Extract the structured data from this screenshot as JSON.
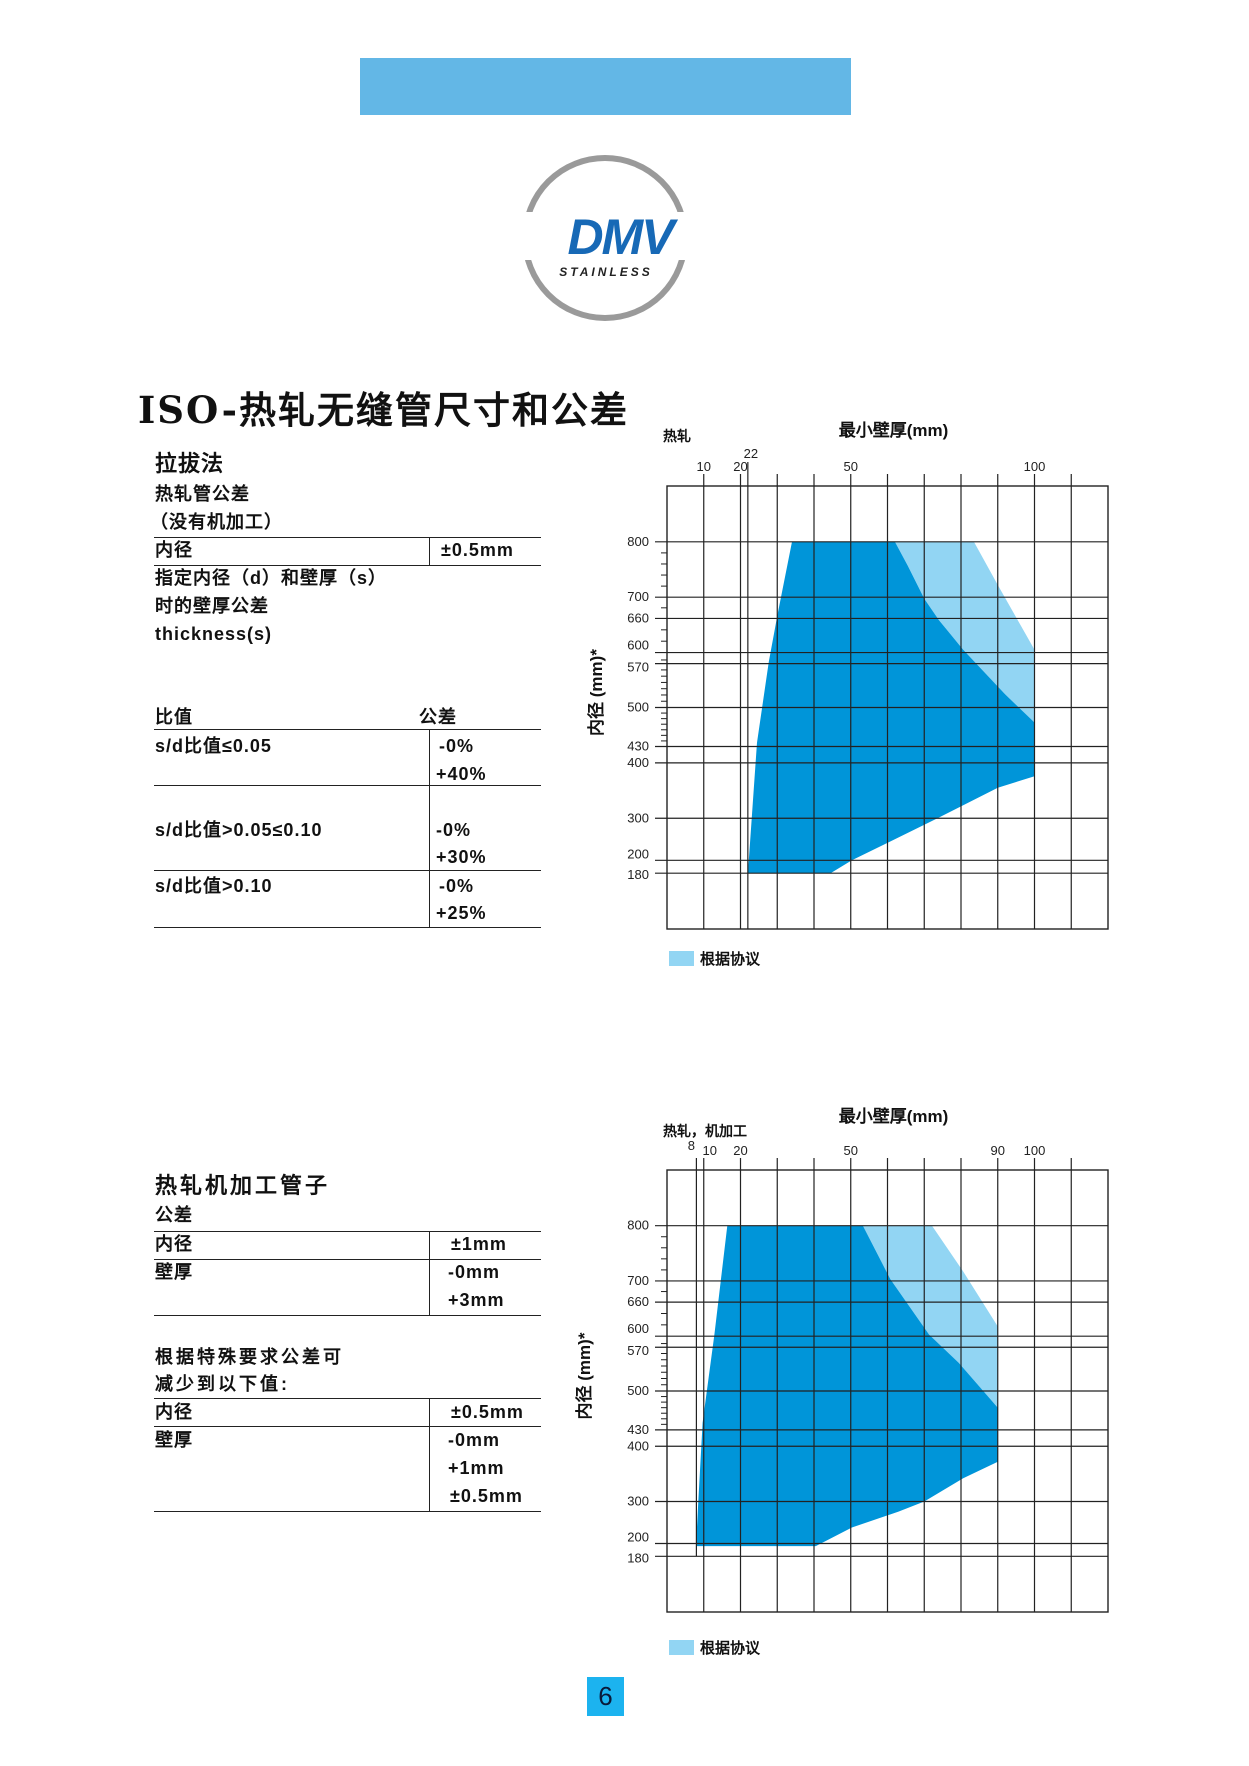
{
  "logo": {
    "brand": "DMV",
    "subtitle": "STAINLESS",
    "colors": {
      "ring": "#9a9a9a",
      "text": "#1769b6"
    }
  },
  "title": "ISO-热轧无缝管尺寸和公差",
  "section1": {
    "heading": "拉拔法",
    "sub1": "热轧管公差",
    "sub2": "（没有机加工）",
    "inner_diameter_label": "内径",
    "inner_diameter_value": "±0.5mm",
    "note1": "指定内径（d）和壁厚（s）",
    "note2": "时的壁厚公差",
    "note3": "thickness(s)",
    "table": {
      "col_ratio": "比值",
      "col_tol": "公差",
      "rows": [
        {
          "ratio": "s/d比值≤0.05",
          "minus": "-0%",
          "plus": "+40%"
        },
        {
          "ratio": "s/d比值>0.05≤0.10",
          "minus": "-0%",
          "plus": "+30%"
        },
        {
          "ratio": "s/d比值>0.10",
          "minus": "-0%",
          "plus": "+25%"
        }
      ]
    }
  },
  "section2": {
    "heading": "热轧机加工管子",
    "sub": "公差",
    "rows1": [
      {
        "label": "内径",
        "values": [
          "±1mm"
        ]
      },
      {
        "label": "壁厚",
        "values": [
          "-0mm",
          "+3mm"
        ]
      }
    ],
    "note1": "根据特殊要求公差可",
    "note2": "减少到以下值:",
    "rows2": [
      {
        "label": "内径",
        "values": [
          "±0.5mm"
        ]
      },
      {
        "label": "壁厚",
        "values": [
          "-0mm",
          "+1mm",
          "±0.5mm"
        ]
      }
    ]
  },
  "chart_data": [
    {
      "type": "area",
      "corner_label": "热轧",
      "xlabel": "最小壁厚(mm)",
      "ylabel": "内径 (mm)*",
      "xlim": [
        0,
        120
      ],
      "x_gridlines": [
        10,
        20,
        22,
        30,
        40,
        50,
        60,
        70,
        80,
        90,
        100,
        110
      ],
      "x_tick_labels": [
        {
          "v": 10,
          "t": "10"
        },
        {
          "v": 20,
          "t": "20"
        },
        {
          "v": 22,
          "t": "22"
        },
        {
          "v": 50,
          "t": "50"
        },
        {
          "v": 100,
          "t": "100"
        }
      ],
      "y_ticks": [
        800,
        700,
        660,
        600,
        570,
        500,
        430,
        400,
        300,
        200,
        180
      ],
      "y_scale": "non-linear",
      "grid": true,
      "legend": {
        "label": "根据协议",
        "placement": "bottom-left"
      },
      "series": [
        {
          "name": "根据协议",
          "color": "#92d5f3",
          "points": [
            [
              62,
              800
            ],
            [
              83.5,
              800
            ],
            [
              90,
              722
            ],
            [
              100,
              605
            ],
            [
              100,
              473
            ],
            [
              92,
              521
            ],
            [
              80.6,
              605
            ],
            [
              74,
              657
            ],
            [
              70,
              697
            ],
            [
              65.5,
              757
            ],
            [
              62,
              800
            ]
          ]
        },
        {
          "color": "#0095d9",
          "points": [
            [
              22,
              180
            ],
            [
              24.5,
              437
            ],
            [
              27.7,
              575
            ],
            [
              30,
              665
            ],
            [
              34,
              800
            ],
            [
              62,
              800
            ],
            [
              65.5,
              757
            ],
            [
              70,
              697
            ],
            [
              74,
              657
            ],
            [
              80.6,
              605
            ],
            [
              92,
              521
            ],
            [
              100,
              473
            ],
            [
              100,
              376
            ],
            [
              90,
              355
            ],
            [
              73.6,
              300
            ],
            [
              50.3,
              200
            ],
            [
              44.5,
              180
            ]
          ]
        }
      ]
    },
    {
      "type": "area",
      "corner_label": "热轧，机加工",
      "xlabel": "最小壁厚(mm)",
      "ylabel": "内径 (mm)*",
      "xlim": [
        0,
        120
      ],
      "x_gridlines": [
        8,
        10,
        20,
        30,
        40,
        50,
        60,
        70,
        80,
        90,
        100,
        110
      ],
      "x_tick_labels": [
        {
          "v": 8,
          "t": "8"
        },
        {
          "v": 10,
          "t": "10"
        },
        {
          "v": 20,
          "t": "20"
        },
        {
          "v": 50,
          "t": "50"
        },
        {
          "v": 90,
          "t": "90"
        },
        {
          "v": 100,
          "t": "100"
        }
      ],
      "y_ticks": [
        800,
        700,
        660,
        600,
        570,
        500,
        430,
        400,
        300,
        200,
        180
      ],
      "y_scale": "non-linear",
      "grid": true,
      "legend": {
        "label": "根据协议",
        "placement": "bottom-left"
      },
      "series": [
        {
          "name": "根据协议",
          "color": "#92d5f3",
          "points": [
            [
              53.3,
              800
            ],
            [
              72.1,
              800
            ],
            [
              80.6,
              717
            ],
            [
              90,
              617
            ],
            [
              90,
              470
            ],
            [
              79.4,
              545
            ],
            [
              71.3,
              603
            ],
            [
              60.8,
              703
            ],
            [
              53.3,
              800
            ]
          ]
        },
        {
          "color": "#0095d9",
          "points": [
            [
              7.9,
              196
            ],
            [
              8.5,
              295
            ],
            [
              9.7,
              443
            ],
            [
              12.9,
              603
            ],
            [
              16.4,
              800
            ],
            [
              53.3,
              800
            ],
            [
              60.8,
              703
            ],
            [
              71.3,
              603
            ],
            [
              79.4,
              545
            ],
            [
              90,
              470
            ],
            [
              90,
              372
            ],
            [
              80.6,
              342
            ],
            [
              70,
              300
            ],
            [
              63,
              276
            ],
            [
              50.3,
              238
            ],
            [
              40.5,
              196
            ]
          ]
        }
      ]
    }
  ],
  "page_number": "6"
}
